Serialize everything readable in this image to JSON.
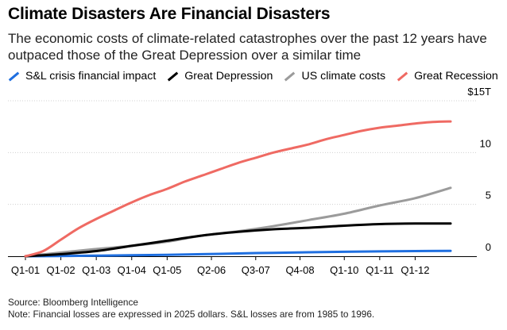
{
  "chart_data": {
    "type": "line",
    "title": "Climate Disasters Are Financial Disasters",
    "subtitle": "The economic costs of climate-related catastrophes over the past 12 years have outpaced those of the Great Depression over a similar time",
    "xlabel": "",
    "ylabel": "",
    "ylim": [
      0,
      15
    ],
    "y_ticks": [
      {
        "value": 0,
        "label": "0"
      },
      {
        "value": 5,
        "label": "5"
      },
      {
        "value": 10,
        "label": "10"
      },
      {
        "value": 15,
        "label": "$15T"
      }
    ],
    "x_ticks": [
      "Q1-01",
      "Q1-02",
      "Q1-03",
      "Q1-04",
      "Q1-05",
      "Q2-06",
      "Q3-07",
      "Q4-08",
      "Q1-10",
      "Q1-11",
      "Q1-12"
    ],
    "x_tick_positions": [
      0,
      4,
      8,
      12,
      16,
      21,
      26,
      31,
      36,
      40,
      44
    ],
    "x_range": [
      0,
      48
    ],
    "legend_position": "top",
    "series": [
      {
        "name": "S&L crisis financial impact",
        "color": "#1f6fe0",
        "x": [
          0,
          4,
          8,
          12,
          16,
          20,
          24,
          28,
          32,
          36,
          40,
          44,
          48
        ],
        "values": [
          0,
          0.02,
          0.05,
          0.09,
          0.14,
          0.2,
          0.27,
          0.33,
          0.38,
          0.43,
          0.47,
          0.5,
          0.52
        ]
      },
      {
        "name": "Great Depression",
        "color": "#000000",
        "x": [
          0,
          4,
          8,
          12,
          16,
          20,
          24,
          28,
          32,
          36,
          40,
          44,
          48
        ],
        "values": [
          0,
          0.2,
          0.5,
          1.0,
          1.5,
          2.0,
          2.35,
          2.6,
          2.75,
          2.95,
          3.1,
          3.15,
          3.15
        ]
      },
      {
        "name": "US climate costs",
        "color": "#9b9b9b",
        "x": [
          0,
          4,
          8,
          12,
          16,
          20,
          24,
          28,
          32,
          36,
          40,
          44,
          48
        ],
        "values": [
          0,
          0.35,
          0.7,
          1.0,
          1.4,
          2.0,
          2.4,
          2.9,
          3.5,
          4.1,
          4.9,
          5.6,
          6.6
        ]
      },
      {
        "name": "Great Recession",
        "color": "#ef6a63",
        "x": [
          0,
          2,
          4,
          6,
          8,
          10,
          12,
          14,
          16,
          18,
          20,
          22,
          24,
          26,
          28,
          30,
          32,
          34,
          36,
          38,
          40,
          42,
          44,
          46,
          48
        ],
        "values": [
          0,
          0.5,
          1.6,
          2.7,
          3.6,
          4.4,
          5.2,
          5.9,
          6.5,
          7.2,
          7.8,
          8.4,
          9.0,
          9.5,
          10.0,
          10.4,
          10.8,
          11.3,
          11.7,
          12.1,
          12.4,
          12.6,
          12.8,
          12.95,
          13.0
        ]
      }
    ]
  },
  "footer": {
    "source": "Source: Bloomberg Intelligence",
    "note": "Note: Financial losses are expressed in 2025 dollars. S&L losses are from 1985 to 1996."
  }
}
